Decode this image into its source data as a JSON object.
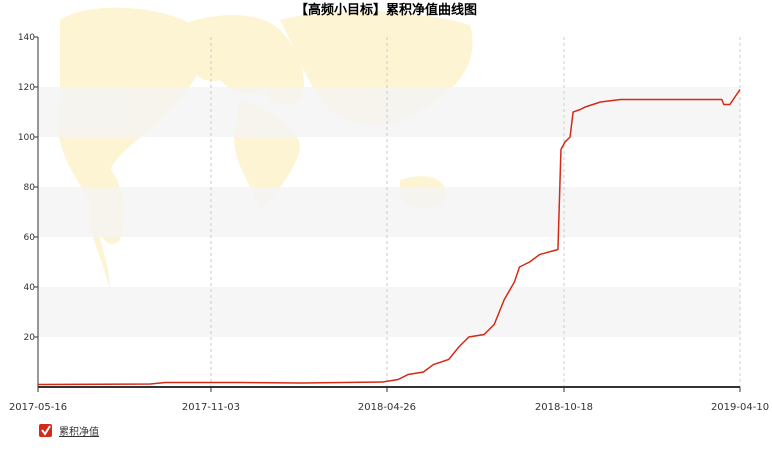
{
  "chart_data": {
    "type": "line",
    "title": "【高频小目标】累积净值曲线图",
    "x": [
      "2017-05-16",
      "2017-09-04",
      "2017-09-19",
      "2017-12-03",
      "2018-02-01",
      "2018-04-22",
      "2018-05-07",
      "2018-05-17",
      "2018-06-01",
      "2018-06-11",
      "2018-06-26",
      "2018-07-06",
      "2018-07-16",
      "2018-07-31",
      "2018-08-10",
      "2018-08-20",
      "2018-08-30",
      "2018-09-04",
      "2018-09-14",
      "2018-09-24",
      "2018-10-12",
      "2018-10-15",
      "2018-10-19",
      "2018-10-24",
      "2018-10-27",
      "2018-11-03",
      "2018-11-08",
      "2018-11-23",
      "2018-12-13",
      "2019-03-23",
      "2019-03-25",
      "2019-03-31",
      "2019-04-05",
      "2019-04-10"
    ],
    "series": [
      {
        "name": "累积净值",
        "color": "#d42a18",
        "values": [
          1,
          1.2,
          1.8,
          1.8,
          1.6,
          2,
          3,
          5,
          6,
          9,
          11,
          16,
          20,
          21,
          25,
          35,
          42,
          48,
          50,
          53,
          55,
          95,
          98,
          100,
          110,
          111,
          112,
          114,
          115,
          115,
          113,
          113,
          116,
          119
        ]
      }
    ],
    "xlim": [
      "2017-05-16",
      "2019-04-10"
    ],
    "xticks": [
      "2017-05-16",
      "2017-11-03",
      "2018-04-26",
      "2018-10-18",
      "2019-04-10"
    ],
    "ylim": [
      0,
      140
    ],
    "yticks": [
      20,
      40,
      60,
      80,
      100,
      120,
      140
    ],
    "grid": true
  }
}
